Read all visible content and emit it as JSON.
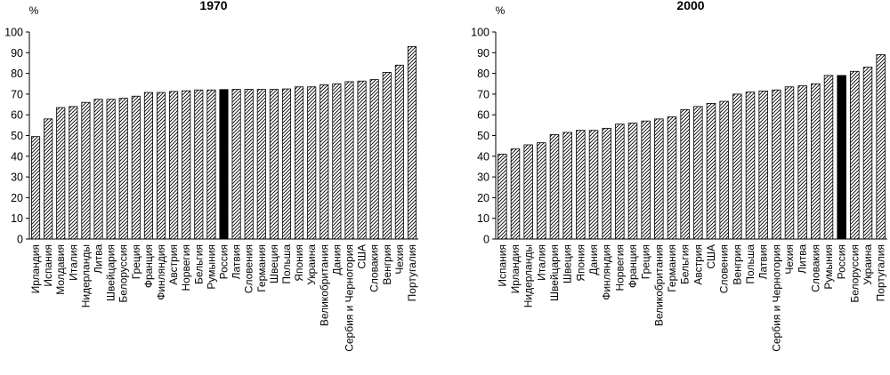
{
  "chart_data": [
    {
      "type": "bar",
      "title": "1970",
      "ylabel": "%",
      "ylim": [
        0,
        100
      ],
      "yticks": [
        0,
        10,
        20,
        30,
        40,
        50,
        60,
        70,
        80,
        90,
        100
      ],
      "highlight": "Россия",
      "colors": {
        "bar_stroke": "#000000",
        "hatch": "#000000",
        "highlight": "#000000"
      },
      "categories": [
        "Ирландия",
        "Испания",
        "Молдавия",
        "Италия",
        "Нидерланды",
        "Литва",
        "Швейцария",
        "Белоруссия",
        "Греция",
        "Франция",
        "Финляндия",
        "Австрия",
        "Норвегия",
        "Бельгия",
        "Румыния",
        "Россия",
        "Латвия",
        "Словения",
        "Германия",
        "Швеция",
        "Польша",
        "Япония",
        "Украина",
        "Великобритания",
        "Дания",
        "Сербия и Черногория",
        "США",
        "Словакия",
        "Венгрия",
        "Чехия",
        "Португалия"
      ],
      "values": [
        49.5,
        58,
        63.5,
        64,
        66,
        67.5,
        67.5,
        68,
        69,
        70.8,
        70.8,
        71.3,
        71.6,
        72,
        72,
        72.2,
        72.3,
        72.3,
        72.3,
        72.3,
        72.5,
        73.5,
        73.5,
        74.5,
        75,
        76,
        76.3,
        77,
        80.5,
        84,
        93
      ]
    },
    {
      "type": "bar",
      "title": "2000",
      "ylabel": "%",
      "ylim": [
        0,
        100
      ],
      "yticks": [
        0,
        10,
        20,
        30,
        40,
        50,
        60,
        70,
        80,
        90,
        100
      ],
      "highlight": "Россия",
      "colors": {
        "bar_stroke": "#000000",
        "hatch": "#000000",
        "highlight": "#000000"
      },
      "categories": [
        "Испания",
        "Ирландия",
        "Нидерланды",
        "Италия",
        "Швейцария",
        "Швеция",
        "Япония",
        "Дания",
        "Финляндия",
        "Норвегия",
        "Франция",
        "Греция",
        "Великобритания",
        "Германия",
        "Бельгия",
        "Австрия",
        "США",
        "Словения",
        "Венгрия",
        "Польша",
        "Латвия",
        "Сербия и Черногория",
        "Чехия",
        "Литва",
        "Словакия",
        "Румыния",
        "Россия",
        "Белоруссия",
        "Украина",
        "Португалия"
      ],
      "values": [
        41,
        43.5,
        45.5,
        46.5,
        50.5,
        51.5,
        52.5,
        52.5,
        53.5,
        55.5,
        56,
        57,
        58,
        59,
        62.5,
        64,
        65.5,
        66.5,
        70,
        71,
        71.5,
        72,
        73.5,
        74,
        75,
        79,
        79,
        81,
        83,
        89
      ]
    }
  ]
}
